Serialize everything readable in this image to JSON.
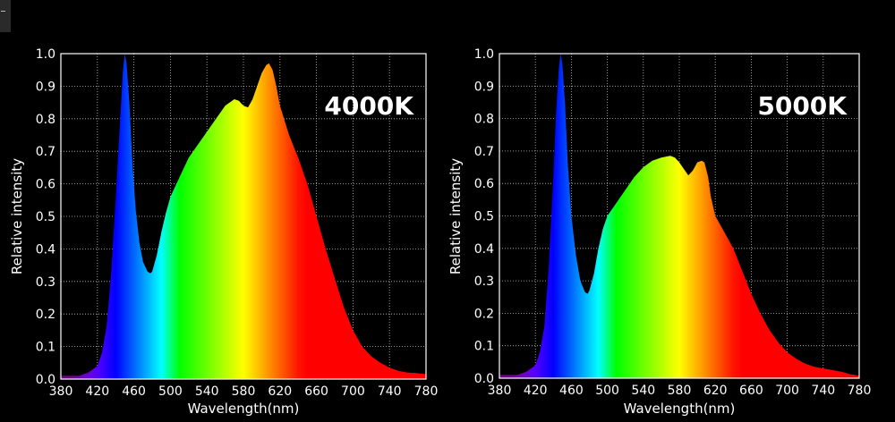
{
  "chart_data": [
    {
      "type": "area",
      "annotation": "4000K",
      "xlabel": "Wavelength(nm)",
      "ylabel": "Relative intensity",
      "xlim": [
        380,
        780
      ],
      "ylim": [
        0,
        1.0
      ],
      "xticks": [
        380,
        420,
        460,
        500,
        540,
        580,
        620,
        660,
        700,
        740,
        780
      ],
      "yticks": [
        0.0,
        0.1,
        0.2,
        0.3,
        0.4,
        0.5,
        0.6,
        0.7,
        0.8,
        0.9,
        1.0
      ],
      "grid": true,
      "x": [
        380,
        400,
        410,
        420,
        425,
        430,
        435,
        440,
        445,
        448,
        450,
        452,
        455,
        458,
        462,
        466,
        470,
        475,
        478,
        480,
        485,
        490,
        495,
        500,
        510,
        520,
        530,
        540,
        550,
        560,
        570,
        575,
        580,
        585,
        590,
        595,
        600,
        605,
        608,
        612,
        616,
        620,
        630,
        640,
        650,
        660,
        670,
        680,
        690,
        700,
        710,
        720,
        730,
        740,
        750,
        760,
        770,
        780
      ],
      "y": [
        0.01,
        0.01,
        0.02,
        0.04,
        0.08,
        0.16,
        0.32,
        0.55,
        0.8,
        0.95,
        1.0,
        0.97,
        0.85,
        0.68,
        0.52,
        0.42,
        0.36,
        0.33,
        0.325,
        0.33,
        0.38,
        0.45,
        0.51,
        0.56,
        0.62,
        0.68,
        0.72,
        0.76,
        0.8,
        0.84,
        0.86,
        0.855,
        0.84,
        0.835,
        0.86,
        0.9,
        0.94,
        0.965,
        0.97,
        0.95,
        0.9,
        0.84,
        0.75,
        0.68,
        0.6,
        0.5,
        0.4,
        0.31,
        0.22,
        0.15,
        0.1,
        0.07,
        0.05,
        0.035,
        0.025,
        0.02,
        0.018,
        0.015
      ]
    },
    {
      "type": "area",
      "annotation": "5000K",
      "xlabel": "Wavelength(nm)",
      "ylabel": "Relative intensity",
      "xlim": [
        380,
        780
      ],
      "ylim": [
        0,
        1.0
      ],
      "xticks": [
        380,
        420,
        460,
        500,
        540,
        580,
        620,
        660,
        700,
        740,
        780
      ],
      "yticks": [
        0.0,
        0.1,
        0.2,
        0.3,
        0.4,
        0.5,
        0.6,
        0.7,
        0.8,
        0.9,
        1.0
      ],
      "grid": true,
      "x": [
        380,
        400,
        410,
        420,
        425,
        430,
        435,
        440,
        443,
        446,
        448,
        450,
        453,
        456,
        460,
        465,
        470,
        475,
        478,
        480,
        485,
        490,
        495,
        500,
        510,
        520,
        530,
        540,
        550,
        560,
        570,
        575,
        580,
        585,
        590,
        595,
        600,
        605,
        608,
        612,
        615,
        620,
        630,
        640,
        650,
        660,
        670,
        680,
        690,
        700,
        710,
        720,
        730,
        740,
        750,
        760,
        770,
        780
      ],
      "y": [
        0.01,
        0.01,
        0.02,
        0.04,
        0.08,
        0.16,
        0.35,
        0.62,
        0.82,
        0.95,
        1.0,
        0.97,
        0.84,
        0.66,
        0.5,
        0.38,
        0.3,
        0.265,
        0.26,
        0.27,
        0.32,
        0.4,
        0.46,
        0.5,
        0.54,
        0.58,
        0.62,
        0.65,
        0.67,
        0.68,
        0.685,
        0.68,
        0.665,
        0.645,
        0.625,
        0.64,
        0.665,
        0.67,
        0.665,
        0.62,
        0.56,
        0.5,
        0.45,
        0.4,
        0.33,
        0.26,
        0.2,
        0.15,
        0.11,
        0.08,
        0.06,
        0.045,
        0.035,
        0.03,
        0.025,
        0.02,
        0.012,
        0.008
      ]
    }
  ]
}
